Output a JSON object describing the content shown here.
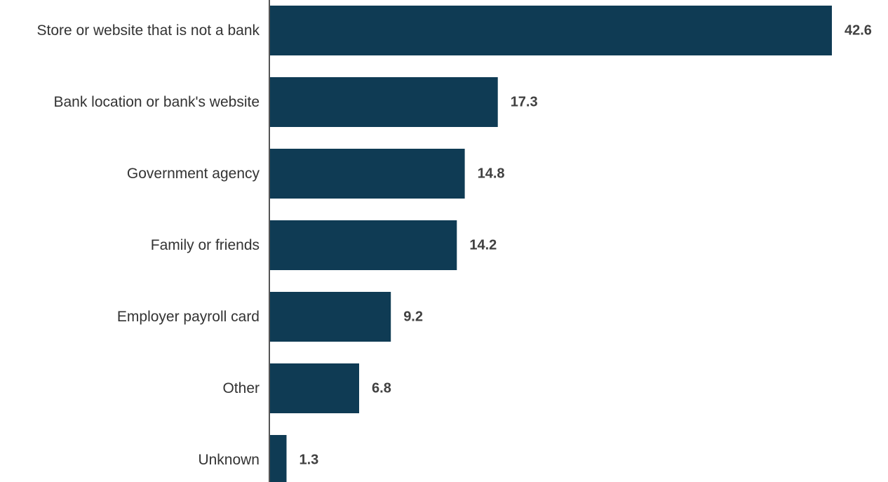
{
  "chart_data": {
    "type": "bar",
    "orientation": "horizontal",
    "categories": [
      "Store or website that is not a bank",
      "Bank location or bank's website",
      "Government agency",
      "Family or friends",
      "Employer payroll card",
      "Other",
      "Unknown"
    ],
    "values": [
      42.6,
      17.3,
      14.8,
      14.2,
      9.2,
      6.8,
      1.3
    ],
    "value_labels": [
      "42.6",
      "17.3",
      "14.8",
      "14.2",
      "9.2",
      "6.8",
      "1.3"
    ],
    "title": "",
    "xlabel": "",
    "ylabel": "",
    "xlim": [
      0,
      42.6
    ],
    "grid": false,
    "legend": "none",
    "colors": {
      "bar": "#0f3b54",
      "axis": "#555555",
      "category_text": "#333333",
      "value_text": "#404040"
    }
  }
}
